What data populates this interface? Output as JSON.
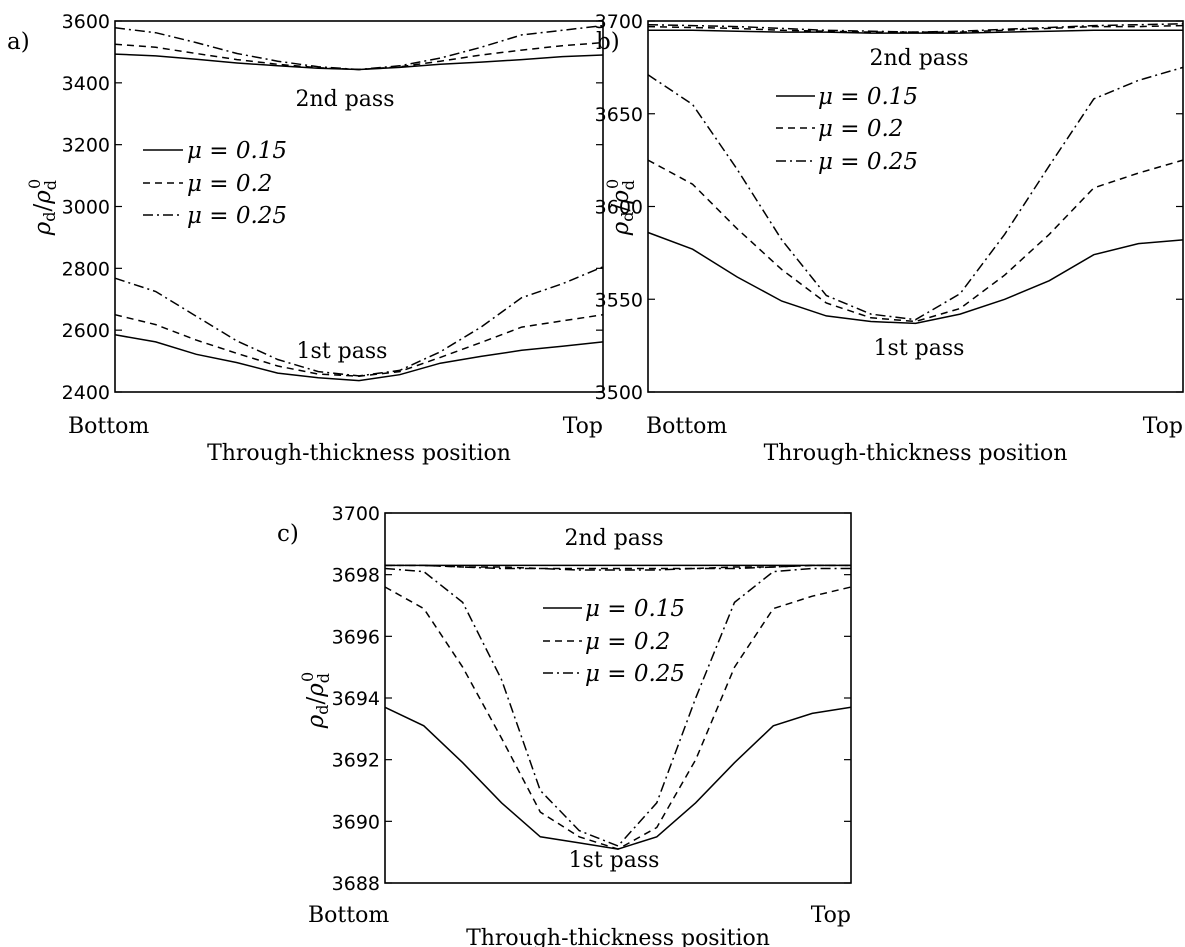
{
  "chart_data": [
    {
      "panel": "a)",
      "type": "line",
      "xlabel": "Through-thickness position",
      "x_ends": [
        "Bottom",
        "Top"
      ],
      "ylabel": "ρd/ρd0",
      "ylim": [
        2400,
        3600
      ],
      "yticks": [
        2400,
        2600,
        2800,
        3000,
        3200,
        3400,
        3600
      ],
      "x": [
        0,
        0.0833,
        0.1667,
        0.25,
        0.3333,
        0.4167,
        0.5,
        0.5833,
        0.6667,
        0.75,
        0.8333,
        0.9167,
        1
      ],
      "annotations": [
        "2nd pass",
        "1st pass"
      ],
      "legend": [
        "μ = 0.15",
        "μ = 0.2",
        "μ = 0.25"
      ],
      "series": [
        {
          "name": "μ = 0.15",
          "pass": "1st pass",
          "values": [
            2585,
            2562,
            2522,
            2495,
            2461,
            2446,
            2437,
            2456,
            2493,
            2515,
            2535,
            2548,
            2562
          ]
        },
        {
          "name": "μ = 0.2",
          "pass": "1st pass",
          "values": [
            2650,
            2618,
            2568,
            2525,
            2484,
            2458,
            2451,
            2466,
            2512,
            2560,
            2610,
            2630,
            2650
          ]
        },
        {
          "name": "μ = 0.25",
          "pass": "1st pass",
          "values": [
            2768,
            2725,
            2645,
            2565,
            2505,
            2466,
            2452,
            2470,
            2530,
            2610,
            2705,
            2750,
            2805
          ]
        },
        {
          "name": "μ = 0.15",
          "pass": "2nd pass",
          "values": [
            3493,
            3487,
            3476,
            3464,
            3455,
            3447,
            3443,
            3450,
            3460,
            3467,
            3475,
            3485,
            3490
          ]
        },
        {
          "name": "μ = 0.2",
          "pass": "2nd pass",
          "values": [
            3525,
            3515,
            3495,
            3475,
            3460,
            3449,
            3443,
            3452,
            3470,
            3490,
            3506,
            3520,
            3530
          ]
        },
        {
          "name": "μ = 0.25",
          "pass": "2nd pass",
          "values": [
            3578,
            3562,
            3530,
            3495,
            3470,
            3452,
            3443,
            3455,
            3480,
            3515,
            3555,
            3570,
            3585
          ]
        }
      ]
    },
    {
      "panel": "b)",
      "type": "line",
      "xlabel": "Through-thickness position",
      "x_ends": [
        "Bottom",
        "Top"
      ],
      "ylabel": "ρd/ρd0",
      "ylim": [
        3500,
        3700
      ],
      "yticks": [
        3500,
        3550,
        3600,
        3650,
        3700
      ],
      "x": [
        0,
        0.0833,
        0.1667,
        0.25,
        0.3333,
        0.4167,
        0.5,
        0.5833,
        0.6667,
        0.75,
        0.8333,
        0.9167,
        1
      ],
      "annotations": [
        "2nd pass",
        "1st pass"
      ],
      "legend": [
        "μ = 0.15",
        "μ = 0.2",
        "μ = 0.25"
      ],
      "series": [
        {
          "name": "μ = 0.15",
          "pass": "1st pass",
          "values": [
            3586,
            3577,
            3562,
            3549,
            3541,
            3538,
            3537,
            3542,
            3550,
            3560,
            3574,
            3580,
            3582
          ]
        },
        {
          "name": "μ = 0.2",
          "pass": "1st pass",
          "values": [
            3625,
            3612,
            3588,
            3566,
            3548,
            3540,
            3538,
            3545,
            3563,
            3585,
            3610,
            3618,
            3625
          ]
        },
        {
          "name": "μ = 0.25",
          "pass": "1st pass",
          "values": [
            3671,
            3655,
            3620,
            3582,
            3552,
            3542,
            3539,
            3553,
            3585,
            3622,
            3658,
            3668,
            3675
          ]
        },
        {
          "name": "μ = 0.15",
          "pass": "2nd pass",
          "values": [
            3695,
            3695,
            3694.5,
            3694,
            3694,
            3693.5,
            3693.5,
            3693.5,
            3694,
            3694.5,
            3695,
            3695,
            3695
          ]
        },
        {
          "name": "μ = 0.2",
          "pass": "2nd pass",
          "values": [
            3697,
            3696.5,
            3696,
            3695,
            3694.5,
            3694,
            3694,
            3694,
            3695,
            3696,
            3697,
            3697,
            3697.5
          ]
        },
        {
          "name": "μ = 0.25",
          "pass": "2nd pass",
          "values": [
            3698,
            3697.5,
            3697,
            3696,
            3695,
            3694.5,
            3694,
            3694.5,
            3695.5,
            3696.5,
            3697.5,
            3698,
            3698.5
          ]
        }
      ]
    },
    {
      "panel": "c)",
      "type": "line",
      "xlabel": "Through-thickness position",
      "x_ends": [
        "Bottom",
        "Top"
      ],
      "ylabel": "ρd/ρd0",
      "ylim": [
        3688,
        3700
      ],
      "yticks": [
        3688,
        3690,
        3692,
        3694,
        3696,
        3698,
        3700
      ],
      "x": [
        0,
        0.0833,
        0.1667,
        0.25,
        0.3333,
        0.4167,
        0.5,
        0.5833,
        0.6667,
        0.75,
        0.8333,
        0.9167,
        1
      ],
      "annotations": [
        "2nd pass",
        "1st pass"
      ],
      "legend": [
        "μ = 0.15",
        "μ = 0.2",
        "μ = 0.25"
      ],
      "series": [
        {
          "name": "μ = 0.15",
          "pass": "1st pass",
          "values": [
            3693.7,
            3693.1,
            3691.9,
            3690.6,
            3689.5,
            3689.3,
            3689.1,
            3689.5,
            3690.6,
            3691.9,
            3693.1,
            3693.5,
            3693.7
          ]
        },
        {
          "name": "μ = 0.2",
          "pass": "1st pass",
          "values": [
            3697.6,
            3696.9,
            3695.0,
            3692.7,
            3690.3,
            3689.5,
            3689.1,
            3689.8,
            3692.0,
            3695.0,
            3696.9,
            3697.3,
            3697.6
          ]
        },
        {
          "name": "μ = 0.25",
          "pass": "1st pass",
          "values": [
            3698.2,
            3698.1,
            3697.1,
            3694.6,
            3691.0,
            3689.7,
            3689.2,
            3690.6,
            3694.0,
            3697.1,
            3698.1,
            3698.2,
            3698.2
          ]
        },
        {
          "name": "μ = 0.15",
          "pass": "2nd pass",
          "values": [
            3698.3,
            3698.3,
            3698.3,
            3698.3,
            3698.3,
            3698.3,
            3698.3,
            3698.3,
            3698.3,
            3698.3,
            3698.3,
            3698.3,
            3698.3
          ]
        },
        {
          "name": "μ = 0.2",
          "pass": "2nd pass",
          "values": [
            3698.3,
            3698.3,
            3698.25,
            3698.25,
            3698.2,
            3698.2,
            3698.2,
            3698.2,
            3698.2,
            3698.25,
            3698.25,
            3698.3,
            3698.3
          ]
        },
        {
          "name": "μ = 0.25",
          "pass": "2nd pass",
          "values": [
            3698.3,
            3698.3,
            3698.25,
            3698.2,
            3698.2,
            3698.15,
            3698.15,
            3698.15,
            3698.2,
            3698.2,
            3698.25,
            3698.3,
            3698.3
          ]
        }
      ]
    }
  ]
}
